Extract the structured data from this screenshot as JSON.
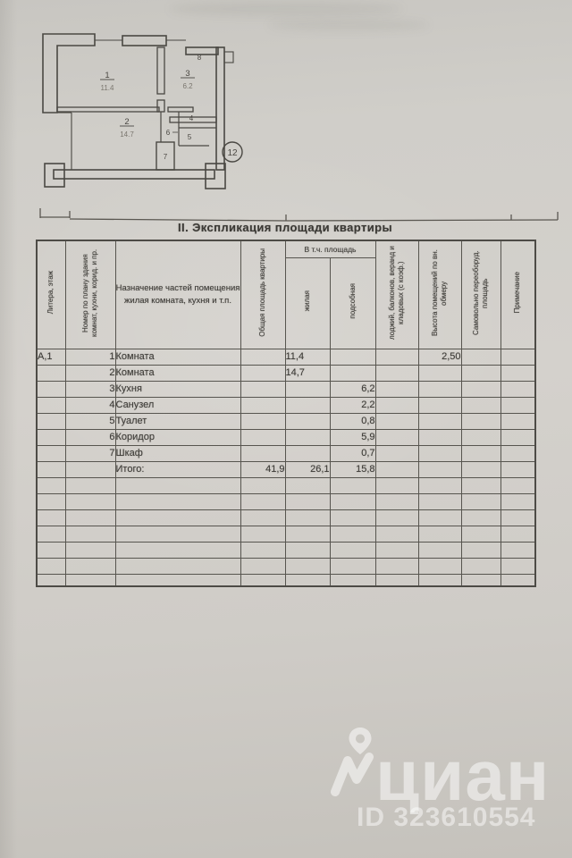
{
  "plan": {
    "rooms": [
      {
        "num": "1",
        "area": "11.4"
      },
      {
        "num": "2",
        "area": "14.7"
      },
      {
        "num": "3",
        "area": "6.2"
      },
      {
        "num": "4",
        "area": ""
      },
      {
        "num": "5",
        "area": ""
      },
      {
        "num": "6",
        "area": ""
      },
      {
        "num": "7",
        "area": ""
      },
      {
        "num": "8",
        "area": ""
      }
    ],
    "unit_badge": "12"
  },
  "table": {
    "title": "II. Экспликация площади квартиры",
    "col_headers": {
      "litera": "Литера, этаж",
      "num": "Номер по плану здания комнат, кухни, корид. и пр.",
      "name": "Назначение частей помещения жилая комната, кухня и т.п.",
      "total": "Общая площадь квартиры",
      "group": "В т.ч. площадь",
      "zhil": "жилая",
      "podsob": "подсобная",
      "lodzh": "лоджий, балконов, веранд и кладовых (с коэф.)",
      "height": "Высота помещений по вн. обмеру",
      "samovol": "Самовольно переоборуд. площадь",
      "note": "Примечание"
    },
    "rows": [
      [
        "А,1",
        "1",
        "Комната",
        "",
        "11,4",
        "",
        "",
        "2,50",
        "",
        ""
      ],
      [
        "",
        "2",
        "Комната",
        "",
        "14,7",
        "",
        "",
        "",
        "",
        ""
      ],
      [
        "",
        "3",
        "Кухня",
        "",
        "",
        "6,2",
        "",
        "",
        "",
        ""
      ],
      [
        "",
        "4",
        "Санузел",
        "",
        "",
        "2,2",
        "",
        "",
        "",
        ""
      ],
      [
        "",
        "5",
        "Туалет",
        "",
        "",
        "0,8",
        "",
        "",
        "",
        ""
      ],
      [
        "",
        "6",
        "Коридор",
        "",
        "",
        "5,9",
        "",
        "",
        "",
        ""
      ],
      [
        "",
        "7",
        "Шкаф",
        "",
        "",
        "0,7",
        "",
        "",
        "",
        ""
      ],
      [
        "",
        "",
        "Итого:",
        "41,9",
        "26,1",
        "15,8",
        "",
        "",
        "",
        ""
      ]
    ],
    "empty_row_count": 7
  },
  "watermark": {
    "brand": "циан",
    "id": "ID 323610554"
  }
}
